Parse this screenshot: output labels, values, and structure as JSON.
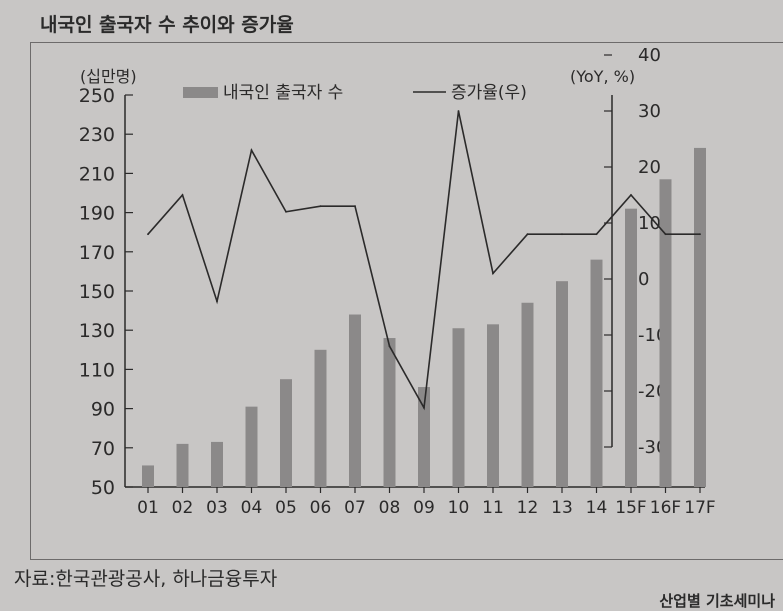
{
  "header": {
    "title": "내국인 출국자 수 추이와 증가율"
  },
  "footer": {
    "source": "자료:한국관광공사, 하나금융투자",
    "corner_text": "산업별 기초세미나"
  },
  "chart_data": {
    "type": "bar",
    "title": "내국인 출국자 수 추이와 증가율",
    "categories": [
      "01",
      "02",
      "03",
      "04",
      "05",
      "06",
      "07",
      "08",
      "09",
      "10",
      "11",
      "12",
      "13",
      "14",
      "15F",
      "16F",
      "17F"
    ],
    "series": [
      {
        "name": "내국인 출국자 수",
        "type": "bar",
        "axis": "left",
        "color": "#8b8989",
        "values": [
          61,
          72,
          73,
          91,
          105,
          120,
          138,
          126,
          101,
          131,
          133,
          144,
          155,
          166,
          192,
          207,
          223
        ]
      },
      {
        "name": "증가율(우)",
        "type": "line",
        "axis": "right",
        "color": "#2b2a2a",
        "values": [
          8,
          15,
          -4,
          23,
          12,
          13,
          13,
          -12,
          -23,
          30,
          1,
          8,
          8,
          8,
          15,
          8,
          8
        ]
      }
    ],
    "left_axis": {
      "unit_label": "(십만명)",
      "ylim": [
        50,
        250
      ],
      "ticks": [
        50,
        70,
        90,
        110,
        130,
        150,
        170,
        190,
        210,
        230,
        250
      ]
    },
    "right_axis": {
      "unit_label": "(YoY, %)",
      "ylim": [
        -30,
        40
      ],
      "ticks": [
        -30,
        -20,
        -10,
        0,
        10,
        20,
        30,
        40
      ]
    },
    "legend": {
      "placement": "top",
      "entries": [
        "내국인 출국자 수",
        "증가율(우)"
      ]
    },
    "grid": false
  }
}
